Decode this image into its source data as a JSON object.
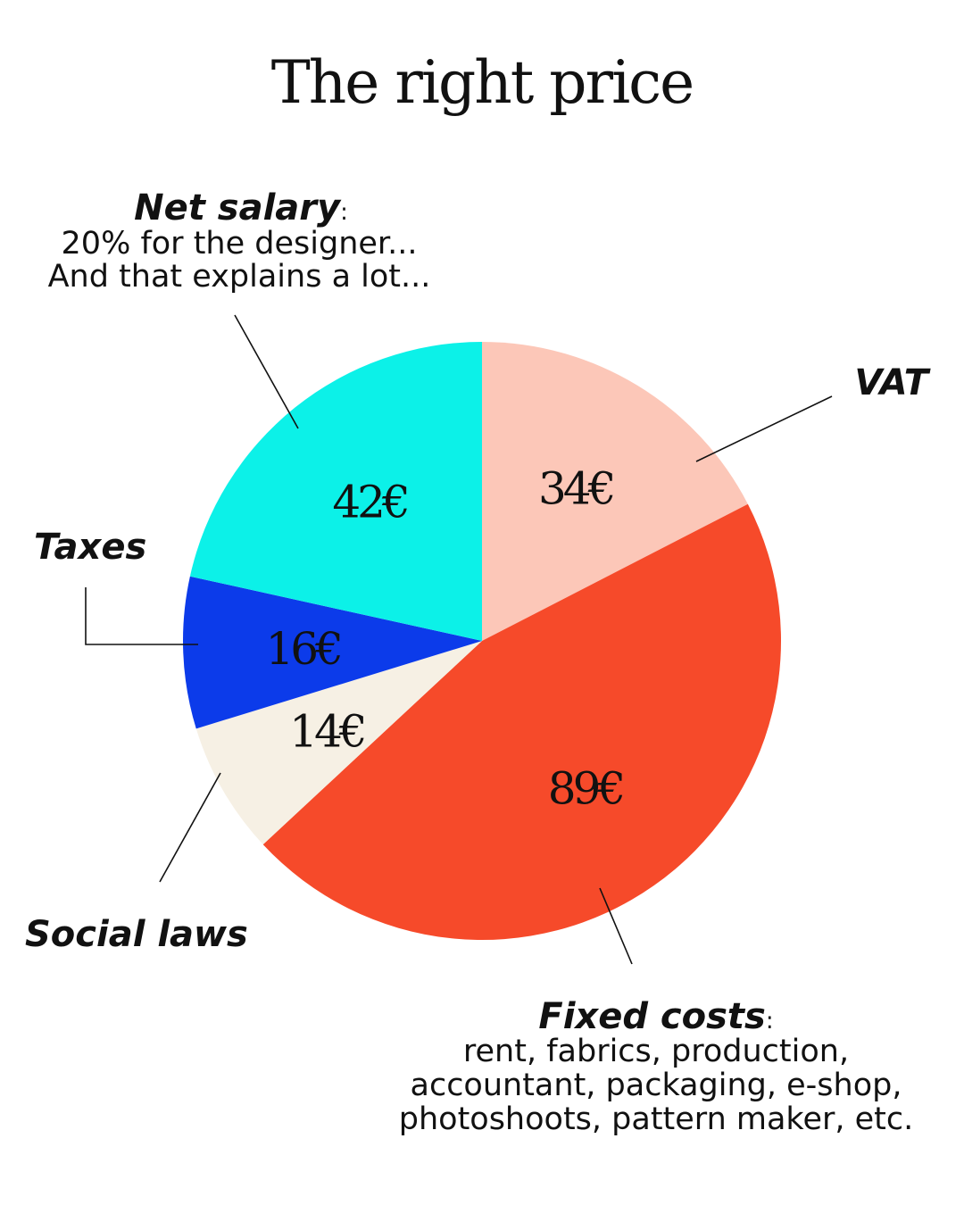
{
  "chart_data": {
    "type": "pie",
    "title": "The right price",
    "slices": [
      {
        "key": "vat",
        "label": "VAT",
        "value": 34,
        "value_label": "34€",
        "color": "#fcc7b8",
        "description": []
      },
      {
        "key": "fixed",
        "label": "Fixed costs",
        "value": 89,
        "value_label": "89€",
        "color": "#f64a2a",
        "description": [
          "rent, fabrics, production,",
          "accountant, packaging, e-shop,",
          "photoshoots, pattern maker, etc."
        ]
      },
      {
        "key": "social",
        "label": "Social laws",
        "value": 14,
        "value_label": "14€",
        "color": "#f6f0e4",
        "description": []
      },
      {
        "key": "taxes",
        "label": "Taxes",
        "value": 16,
        "value_label": "16€",
        "color": "#0c3bea",
        "description": []
      },
      {
        "key": "net",
        "label": "Net salary",
        "value": 42,
        "value_label": "42€",
        "color": "#0cf1e8",
        "description": [
          "20% for the designer...",
          "And that explains a lot..."
        ]
      }
    ]
  }
}
